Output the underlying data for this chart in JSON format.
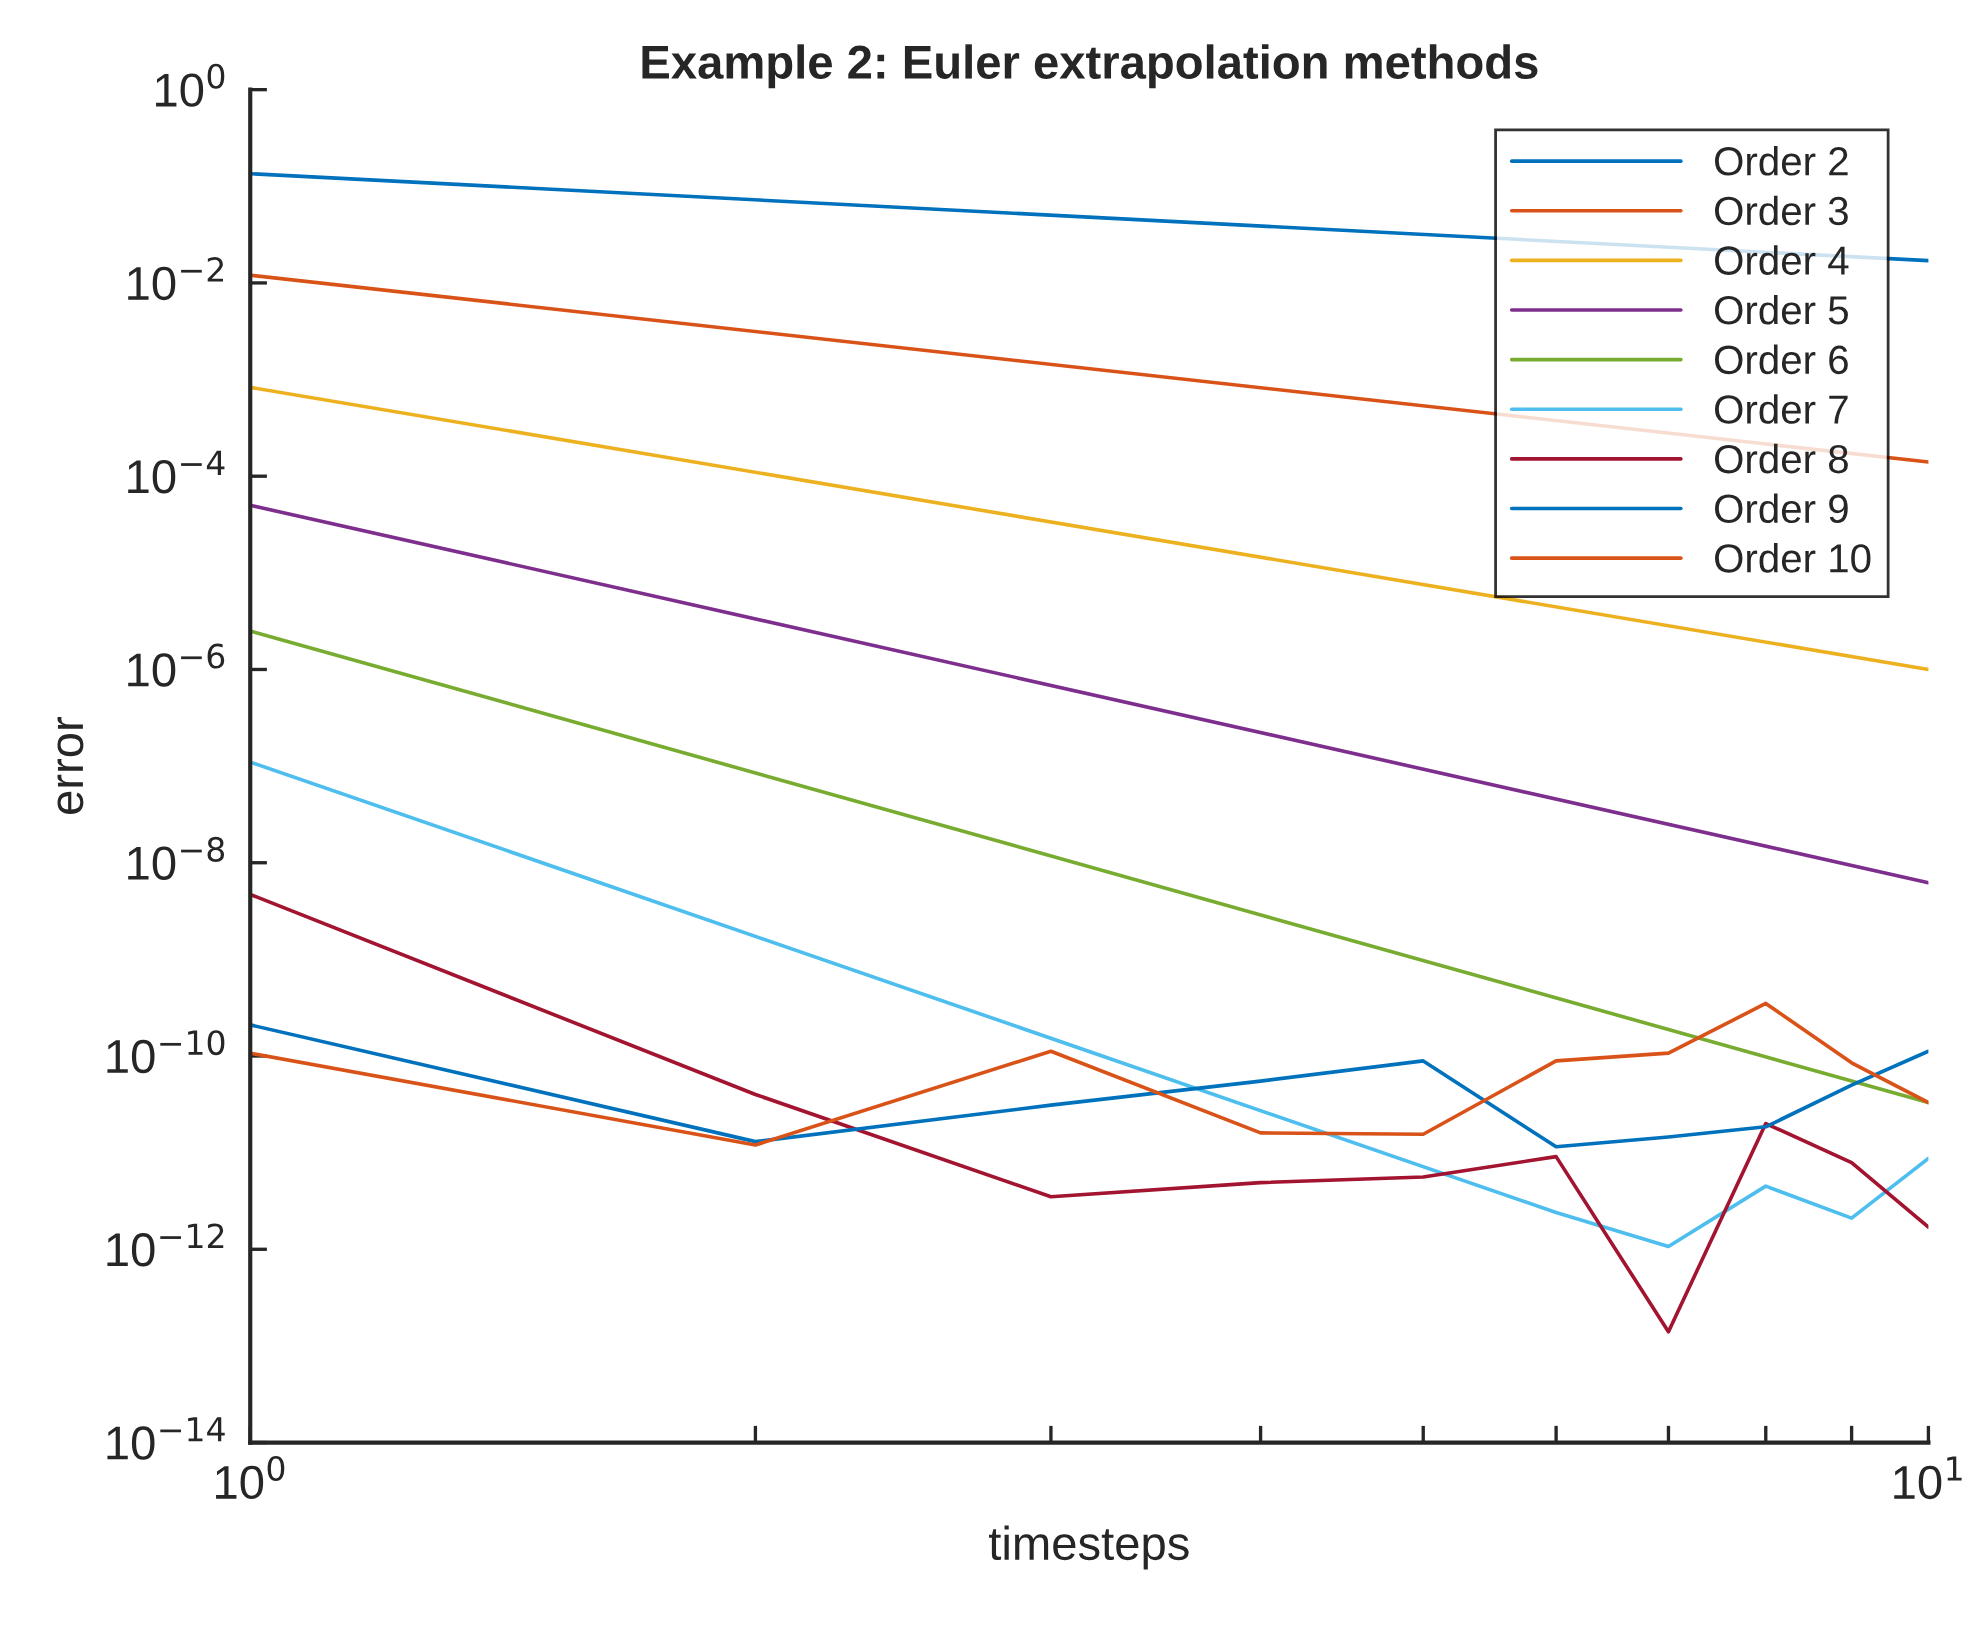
{
  "chart_data": {
    "type": "line",
    "title": "Example 2: Euler extrapolation methods",
    "xlabel": "timesteps",
    "ylabel": "error",
    "log": "xy",
    "grid": false,
    "legend": "top right",
    "line_style": "solid",
    "marker": "none",
    "xlim": [
      1,
      10
    ],
    "xticks": [
      {
        "value": 1,
        "label": "10$^{0}$"
      },
      {
        "value": 2,
        "label": null
      },
      {
        "value": 3,
        "label": null
      },
      {
        "value": 4,
        "label": null
      },
      {
        "value": 5,
        "label": null
      },
      {
        "value": 6,
        "label": null
      },
      {
        "value": 7,
        "label": null
      },
      {
        "value": 8,
        "label": null
      },
      {
        "value": 9,
        "label": null
      },
      {
        "value": 10,
        "label": "10$^{1}$"
      }
    ],
    "ylim": [
      1e-14,
      1
    ],
    "yticks": [
      {
        "value": 1e-14,
        "label": "10$^{−14}$"
      },
      {
        "value": 1e-12,
        "label": "10$^{−12}$"
      },
      {
        "value": 1e-10,
        "label": "10$^{−10}$"
      },
      {
        "value": 1e-08,
        "label": "10$^{−8}$"
      },
      {
        "value": 1e-06,
        "label": "10$^{−6}$"
      },
      {
        "value": 0.0001,
        "label": "10$^{−4}$"
      },
      {
        "value": 0.01,
        "label": "10$^{−2}$"
      },
      {
        "value": 1,
        "label": "10$^{0}$"
      }
    ],
    "series": [
      {
        "name": "Order 2",
        "color": "#0072bd",
        "x": [
          1,
          10
        ],
        "values": [
          0.135,
          0.017
        ]
      },
      {
        "name": "Order 3",
        "color": "#d95319",
        "x": [
          1,
          10
        ],
        "values": [
          0.012,
          0.00014
        ]
      },
      {
        "name": "Order 4",
        "color": "#edb120",
        "x": [
          1,
          10
        ],
        "values": [
          0.00083,
          1e-06
        ]
      },
      {
        "name": "Order 5",
        "color": "#7e2f8e",
        "x": [
          1,
          10
        ],
        "values": [
          5e-05,
          6.2e-09
        ]
      },
      {
        "name": "Order 6",
        "color": "#77ac30",
        "x": [
          1,
          10
        ],
        "values": [
          2.5e-06,
          3.3e-11
        ]
      },
      {
        "name": "Order 7",
        "color": "#4dbeee",
        "x": [
          1,
          6,
          7,
          8,
          9,
          10
        ],
        "values": [
          1.1e-07,
          2.4e-12,
          1.07e-12,
          4.5e-12,
          2.1e-12,
          8.7e-12
        ]
      },
      {
        "name": "Order 8",
        "color": "#a2142f",
        "x": [
          1,
          2,
          3,
          4,
          5,
          6,
          7,
          8,
          9,
          10
        ],
        "values": [
          4.7e-09,
          4e-11,
          3.5e-12,
          4.9e-12,
          5.6e-12,
          9.1e-12,
          1.4e-13,
          2e-11,
          7.9e-12,
          1.7e-12
        ]
      },
      {
        "name": "Order 9",
        "color": "#0072bd",
        "x": [
          1,
          2,
          3,
          4,
          5,
          6,
          7,
          8,
          9,
          10
        ],
        "values": [
          2.1e-10,
          1.3e-11,
          3.1e-11,
          5.5e-11,
          8.9e-11,
          1.15e-11,
          1.45e-11,
          1.85e-11,
          5e-11,
          1.12e-10
        ]
      },
      {
        "name": "Order 10",
        "color": "#d95319",
        "x": [
          1,
          2,
          3,
          4,
          5,
          6,
          7,
          8,
          9,
          10
        ],
        "values": [
          1.07e-10,
          1.2e-11,
          1.12e-10,
          1.6e-11,
          1.55e-11,
          8.9e-11,
          1.07e-10,
          3.5e-10,
          8.5e-11,
          3.3e-11
        ]
      }
    ]
  }
}
